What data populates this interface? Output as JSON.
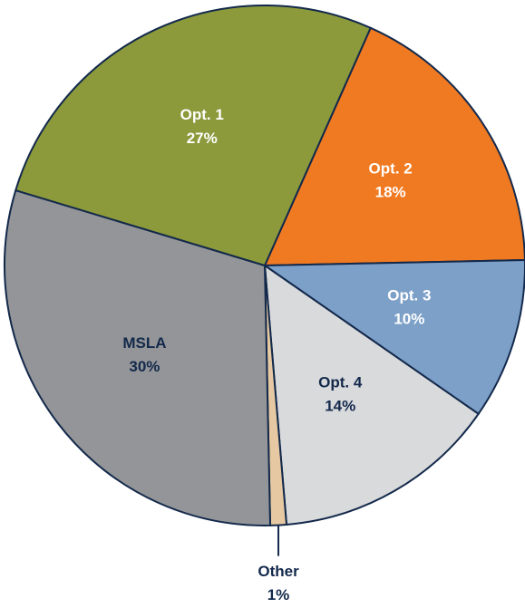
{
  "chart_data": {
    "type": "pie",
    "categories": [
      "Opt. 2",
      "Opt. 3",
      "Opt. 4",
      "Other",
      "MSLA",
      "Opt. 1"
    ],
    "values": [
      18,
      10,
      14,
      1,
      30,
      27
    ],
    "value_labels": [
      "18%",
      "10%",
      "14%",
      "1%",
      "30%",
      "27%"
    ],
    "colors": [
      "#f07a22",
      "#7da0c8",
      "#d9dadc",
      "#e6c9a2",
      "#939598",
      "#8c9a3c"
    ],
    "label_colors": [
      "#ffffff",
      "#ffffff",
      "#13294b",
      "#13294b",
      "#13294b",
      "#ffffff"
    ]
  }
}
